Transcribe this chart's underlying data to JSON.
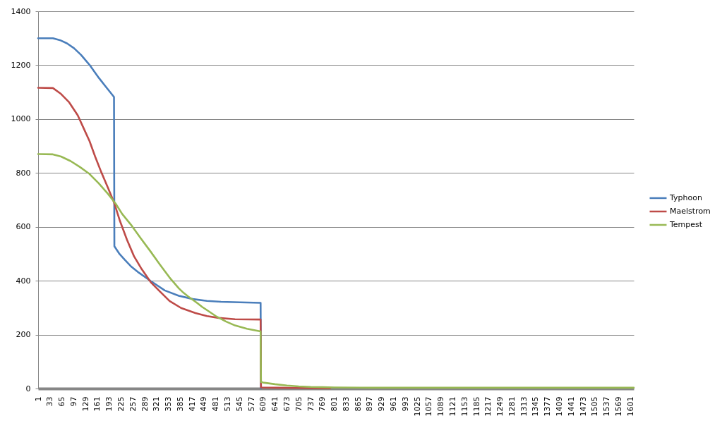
{
  "chart_data": {
    "type": "line",
    "xlim": [
      1,
      1610
    ],
    "xticks": [
      1,
      33,
      65,
      97,
      129,
      161,
      193,
      225,
      257,
      289,
      321,
      353,
      385,
      417,
      449,
      481,
      513,
      545,
      577,
      609,
      641,
      673,
      705,
      737,
      769,
      801,
      833,
      865,
      897,
      929,
      961,
      993,
      1025,
      1057,
      1089,
      1121,
      1153,
      1185,
      1217,
      1249,
      1281,
      1313,
      1345,
      1377,
      1409,
      1441,
      1473,
      1505,
      1537,
      1569,
      1601
    ],
    "ylim": [
      0,
      1400
    ],
    "yticks": [
      0,
      200,
      400,
      600,
      800,
      1000,
      1200,
      1400
    ],
    "grid": "y",
    "legend": "right",
    "line_style": "solid",
    "series": [
      {
        "name": "Typhoon",
        "color": "#4a7ebb",
        "x": [
          1,
          41,
          60,
          79,
          98,
          117,
          140,
          165,
          185,
          206,
          207,
          220,
          235,
          253,
          273,
          305,
          343,
          381,
          419,
          457,
          495,
          546,
          602,
          603
        ],
        "values": [
          1300,
          1300,
          1293,
          1281,
          1263,
          1238,
          1201,
          1153,
          1118,
          1082,
          528,
          501,
          478,
          452,
          430,
          399,
          364,
          344,
          332,
          325,
          322,
          320,
          318,
          0
        ]
      },
      {
        "name": "Maelstrom",
        "color": "#be4b48",
        "x": [
          1,
          41,
          63,
          85,
          108,
          124,
          140,
          155,
          171,
          190,
          206,
          222,
          241,
          260,
          279,
          305,
          330,
          356,
          387,
          426,
          457,
          489,
          533,
          602,
          603,
          650,
          700,
          770,
          790
        ],
        "values": [
          1116,
          1115,
          1093,
          1062,
          1014,
          966,
          918,
          861,
          805,
          744,
          691,
          622,
          552,
          491,
          447,
          395,
          360,
          325,
          299,
          280,
          269,
          262,
          257,
          256,
          4,
          3,
          2,
          1,
          1
        ]
      },
      {
        "name": "Tempest",
        "color": "#98b954",
        "x": [
          1,
          41,
          63,
          89,
          114,
          140,
          165,
          190,
          211,
          228,
          254,
          279,
          305,
          330,
          356,
          381,
          394,
          407,
          419,
          432,
          444,
          457,
          483,
          508,
          533,
          565,
          602,
          603,
          609,
          641,
          673,
          705,
          737,
          769,
          801,
          900,
          1610
        ],
        "values": [
          870,
          869,
          861,
          844,
          822,
          796,
          761,
          722,
          685,
          648,
          604,
          556,
          508,
          460,
          412,
          372,
          355,
          341,
          329,
          316,
          303,
          291,
          267,
          249,
          234,
          222,
          212,
          24,
          22,
          16,
          11,
          8,
          6,
          5,
          4,
          3,
          3
        ]
      }
    ]
  }
}
